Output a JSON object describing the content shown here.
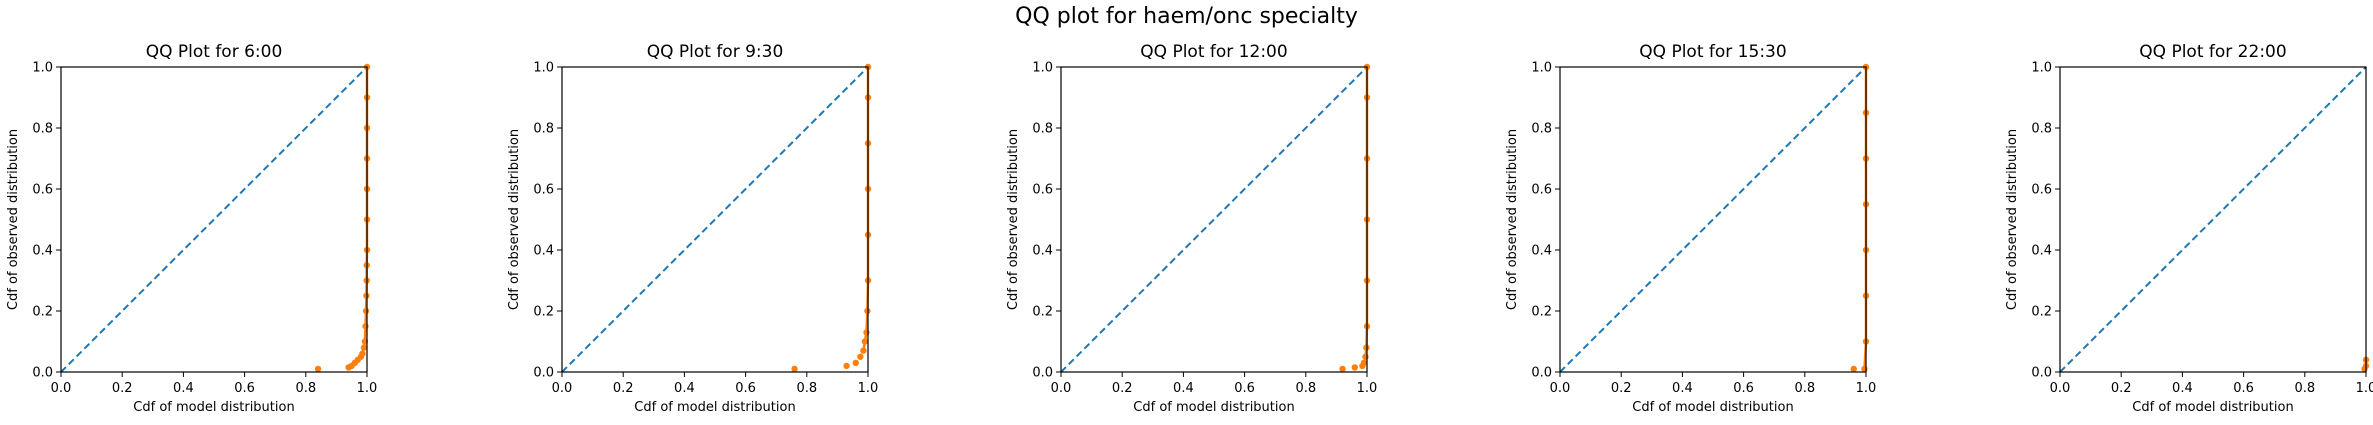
{
  "figure": {
    "title": "QQ plot for haem/onc specialty"
  },
  "colors": {
    "reference_line": "#1f77b4",
    "observed": "#ff7f0e",
    "axes": "#000000"
  },
  "chart_data": [
    {
      "type": "scatter",
      "title": "QQ Plot for 6:00",
      "xlabel": "Cdf of model distribution",
      "ylabel": "Cdf of observed distribution",
      "xlim": [
        0,
        1
      ],
      "ylim": [
        0,
        1
      ],
      "xticks": [
        "0.0",
        "0.2",
        "0.4",
        "0.6",
        "0.8",
        "1.0"
      ],
      "yticks": [
        "0.0",
        "0.2",
        "0.4",
        "0.6",
        "0.8",
        "1.0"
      ],
      "grid": false,
      "reference_line": [
        [
          0,
          0
        ],
        [
          1,
          1
        ]
      ],
      "points": [
        [
          0.84,
          0.01
        ],
        [
          0.94,
          0.015
        ],
        [
          0.95,
          0.02
        ],
        [
          0.96,
          0.03
        ],
        [
          0.97,
          0.04
        ],
        [
          0.98,
          0.05
        ],
        [
          0.985,
          0.06
        ],
        [
          0.99,
          0.08
        ],
        [
          0.993,
          0.1
        ],
        [
          0.995,
          0.15
        ],
        [
          0.997,
          0.2
        ],
        [
          0.998,
          0.25
        ],
        [
          0.999,
          0.3
        ],
        [
          0.999,
          0.35
        ],
        [
          1.0,
          0.4
        ],
        [
          1.0,
          0.5
        ],
        [
          1.0,
          0.6
        ],
        [
          1.0,
          0.7
        ],
        [
          1.0,
          0.8
        ],
        [
          1.0,
          0.9
        ],
        [
          1.0,
          1.0
        ]
      ]
    },
    {
      "type": "scatter",
      "title": "QQ Plot for 9:30",
      "xlabel": "Cdf of model distribution",
      "ylabel": "Cdf of observed distribution",
      "xlim": [
        0,
        1
      ],
      "ylim": [
        0,
        1
      ],
      "xticks": [
        "0.0",
        "0.2",
        "0.4",
        "0.6",
        "0.8",
        "1.0"
      ],
      "yticks": [
        "0.0",
        "0.2",
        "0.4",
        "0.6",
        "0.8",
        "1.0"
      ],
      "grid": false,
      "reference_line": [
        [
          0,
          0
        ],
        [
          1,
          1
        ]
      ],
      "points": [
        [
          0.76,
          0.01
        ],
        [
          0.93,
          0.02
        ],
        [
          0.96,
          0.03
        ],
        [
          0.975,
          0.05
        ],
        [
          0.985,
          0.07
        ],
        [
          0.99,
          0.1
        ],
        [
          0.995,
          0.13
        ],
        [
          0.998,
          0.2
        ],
        [
          1.0,
          0.3
        ],
        [
          1.0,
          0.45
        ],
        [
          1.0,
          0.6
        ],
        [
          1.0,
          0.75
        ],
        [
          1.0,
          0.9
        ],
        [
          1.0,
          1.0
        ]
      ]
    },
    {
      "type": "scatter",
      "title": "QQ Plot for 12:00",
      "xlabel": "Cdf of model distribution",
      "ylabel": "Cdf of observed distribution",
      "xlim": [
        0,
        1
      ],
      "ylim": [
        0,
        1
      ],
      "xticks": [
        "0.0",
        "0.2",
        "0.4",
        "0.6",
        "0.8",
        "1.0"
      ],
      "yticks": [
        "0.0",
        "0.2",
        "0.4",
        "0.6",
        "0.8",
        "1.0"
      ],
      "grid": false,
      "reference_line": [
        [
          0,
          0
        ],
        [
          1,
          1
        ]
      ],
      "points": [
        [
          0.92,
          0.01
        ],
        [
          0.96,
          0.015
        ],
        [
          0.985,
          0.02
        ],
        [
          0.99,
          0.03
        ],
        [
          0.995,
          0.05
        ],
        [
          0.998,
          0.08
        ],
        [
          1.0,
          0.15
        ],
        [
          1.0,
          0.3
        ],
        [
          1.0,
          0.5
        ],
        [
          1.0,
          0.7
        ],
        [
          1.0,
          0.9
        ],
        [
          1.0,
          1.0
        ]
      ]
    },
    {
      "type": "scatter",
      "title": "QQ Plot for 15:30",
      "xlabel": "Cdf of model distribution",
      "ylabel": "Cdf of observed distribution",
      "xlim": [
        0,
        1
      ],
      "ylim": [
        0,
        1
      ],
      "xticks": [
        "0.0",
        "0.2",
        "0.4",
        "0.6",
        "0.8",
        "1.0"
      ],
      "yticks": [
        "0.0",
        "0.2",
        "0.4",
        "0.6",
        "0.8",
        "1.0"
      ],
      "grid": false,
      "reference_line": [
        [
          0,
          0
        ],
        [
          1,
          1
        ]
      ],
      "points": [
        [
          0.96,
          0.01
        ],
        [
          0.995,
          0.01
        ],
        [
          1.0,
          0.1
        ],
        [
          1.0,
          0.25
        ],
        [
          1.0,
          0.4
        ],
        [
          1.0,
          0.55
        ],
        [
          1.0,
          0.7
        ],
        [
          1.0,
          0.85
        ],
        [
          1.0,
          1.0
        ]
      ]
    },
    {
      "type": "scatter",
      "title": "QQ Plot for 22:00",
      "xlabel": "Cdf of model distribution",
      "ylabel": "Cdf of observed distribution",
      "xlim": [
        0,
        1
      ],
      "ylim": [
        0,
        1
      ],
      "xticks": [
        "0.0",
        "0.2",
        "0.4",
        "0.6",
        "0.8",
        "1.0"
      ],
      "yticks": [
        "0.0",
        "0.2",
        "0.4",
        "0.6",
        "0.8",
        "1.0"
      ],
      "grid": false,
      "reference_line": [
        [
          0,
          0
        ],
        [
          1,
          1
        ]
      ],
      "points": [
        [
          0.995,
          0.01
        ],
        [
          1.0,
          0.02
        ],
        [
          1.0,
          0.04
        ]
      ]
    }
  ]
}
